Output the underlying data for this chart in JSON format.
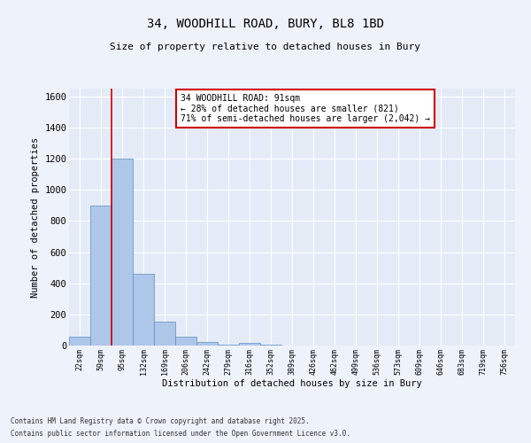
{
  "title_line1": "34, WOODHILL ROAD, BURY, BL8 1BD",
  "title_line2": "Size of property relative to detached houses in Bury",
  "xlabel": "Distribution of detached houses by size in Bury",
  "ylabel": "Number of detached properties",
  "annotation_line1": "34 WOODHILL ROAD: 91sqm",
  "annotation_line2": "← 28% of detached houses are smaller (821)",
  "annotation_line3": "71% of semi-detached houses are larger (2,042) →",
  "footnote1": "Contains HM Land Registry data © Crown copyright and database right 2025.",
  "footnote2": "Contains public sector information licensed under the Open Government Licence v3.0.",
  "bin_labels": [
    "22sqm",
    "59sqm",
    "95sqm",
    "132sqm",
    "169sqm",
    "206sqm",
    "242sqm",
    "279sqm",
    "316sqm",
    "352sqm",
    "389sqm",
    "426sqm",
    "462sqm",
    "499sqm",
    "536sqm",
    "573sqm",
    "609sqm",
    "646sqm",
    "683sqm",
    "719sqm",
    "756sqm"
  ],
  "bar_values": [
    55,
    900,
    1200,
    460,
    155,
    55,
    25,
    5,
    15,
    5,
    0,
    0,
    0,
    0,
    0,
    0,
    0,
    0,
    0,
    0,
    0
  ],
  "bar_color": "#aec6e8",
  "bar_edge_color": "#5a8fc2",
  "property_line_x": 2.0,
  "property_line_color": "#cc0000",
  "annotation_box_color": "#cc0000",
  "background_color": "#eef2fb",
  "plot_bg_color": "#e4ebf7",
  "grid_color": "#ffffff",
  "ylim": [
    0,
    1650
  ],
  "yticks": [
    0,
    200,
    400,
    600,
    800,
    1000,
    1200,
    1400,
    1600
  ]
}
